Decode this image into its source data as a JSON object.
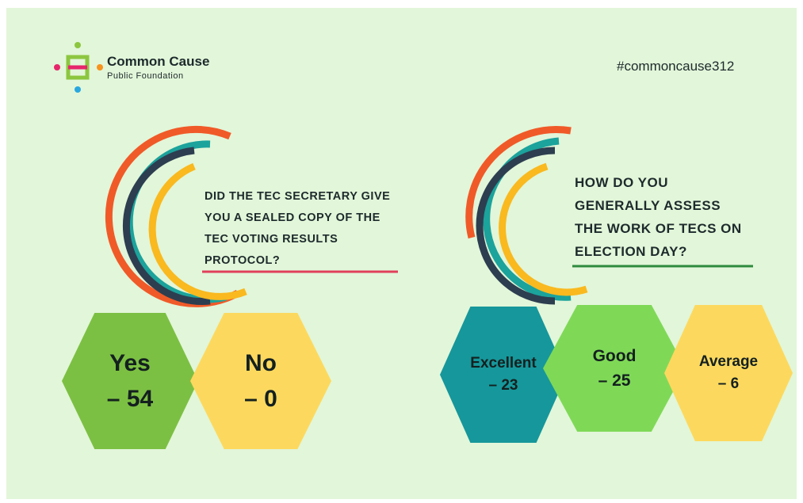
{
  "header": {
    "logo_name": "Common Cause",
    "logo_subtitle": "Public Foundation",
    "hashtag": "#commoncause312"
  },
  "questions": [
    {
      "lines": [
        "DID THE TEC SECRETARY GIVE",
        "YOU A SEALED COPY OF THE",
        "TEC VOTING RESULTS",
        "PROTOCOL?"
      ],
      "answers": [
        {
          "label": "Yes",
          "count": "– 54"
        },
        {
          "label": "No",
          "count": "– 0"
        }
      ]
    },
    {
      "lines": [
        "HOW DO YOU",
        "GENERALLY ASSESS",
        "THE WORK OF TECS ON",
        "ELECTION DAY?"
      ],
      "answers": [
        {
          "label": "Excellent",
          "count": "– 23"
        },
        {
          "label": "Good",
          "count": "– 25"
        },
        {
          "label": "Average",
          "count": "– 6"
        }
      ]
    }
  ]
}
